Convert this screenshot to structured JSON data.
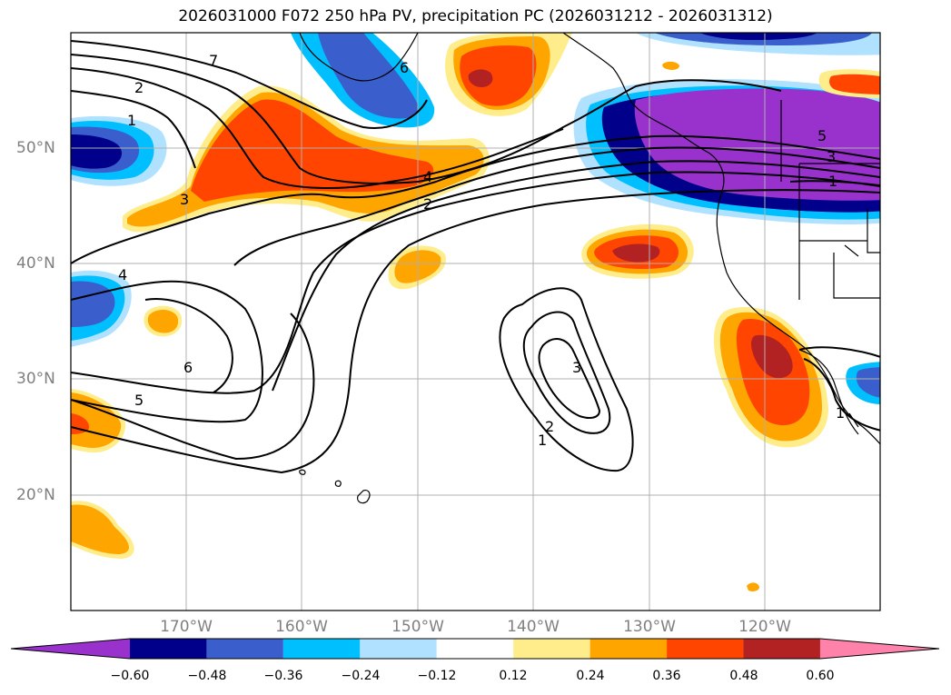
{
  "title": "2026031000 F072 250 hPa PV, precipitation PC (2026031212 - 2026031312)",
  "map": {
    "lon_labels": [
      {
        "lon": -170,
        "label": "170°W"
      },
      {
        "lon": -160,
        "label": "160°W"
      },
      {
        "lon": -150,
        "label": "150°W"
      },
      {
        "lon": -140,
        "label": "140°W"
      },
      {
        "lon": -130,
        "label": "130°W"
      },
      {
        "lon": -120,
        "label": "120°W"
      }
    ],
    "lat_labels": [
      {
        "lat": 50,
        "label": "50°N"
      },
      {
        "lat": 40,
        "label": "40°N"
      },
      {
        "lat": 30,
        "label": "30°N"
      },
      {
        "lat": 20,
        "label": "20°N"
      }
    ],
    "extent": {
      "lon_min": -180,
      "lon_max": -110,
      "lat_min": 10,
      "lat_max": 60
    },
    "contour_labels": [
      "7",
      "2",
      "1",
      "6",
      "3",
      "4",
      "2",
      "4",
      "6",
      "5",
      "3",
      "2",
      "1",
      "5",
      "3",
      "1",
      "1"
    ]
  },
  "colorbar": {
    "ticks": [
      "−0.60",
      "−0.48",
      "−0.36",
      "−0.24",
      "−0.12",
      "0.12",
      "0.24",
      "0.36",
      "0.48",
      "0.60"
    ],
    "colors": [
      "#9932cc",
      "#00008b",
      "#3a5fcd",
      "#00bfff",
      "#b0e2ff",
      "#ffffff",
      "#ffec8b",
      "#ffa500",
      "#ff4500",
      "#b22222",
      "#ff82ab"
    ]
  }
}
